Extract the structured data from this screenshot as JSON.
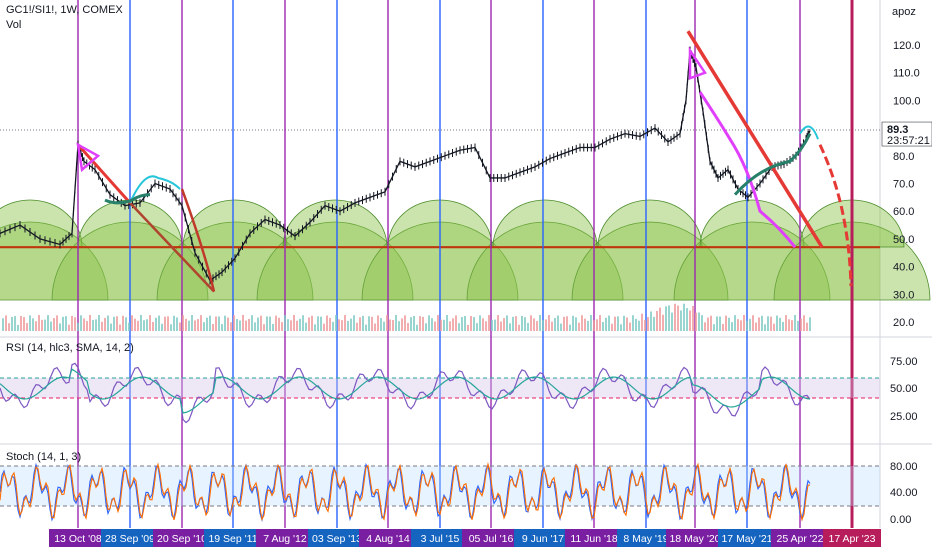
{
  "header": {
    "symbol": "GC1!/SI1!, 1W, COMEX",
    "volume_label": "Vol"
  },
  "scale_label": "apoz",
  "price_badge": {
    "value": "89.3",
    "countdown": "23:57:21"
  },
  "rsi_label": "RSI (14, hlc3, SMA, 14, 2)",
  "stoch_label": "Stoch (14, 1, 3)",
  "colors": {
    "purple_line": "#9c27b0",
    "blue_line": "#2962ff",
    "future_line": "#b71c5b",
    "trend_red": "#e53935",
    "trend_dark": "#b0452f",
    "magenta": "#e040fb",
    "cyan": "#26c6da",
    "teal": "#26806a",
    "green_arc": "#8bc34a",
    "support": "#bf360c",
    "rsi_line": "#7e57c2",
    "rsi_ma": "#26a69a",
    "stoch_k": "#2962ff",
    "stoch_d": "#ff6d00",
    "date_tag_purple": "#7b1fa2",
    "date_tag_blue": "#1565c0",
    "date_tag_future": "#b71c5b"
  },
  "chart_data": {
    "type": "line",
    "title": "GC1!/SI1!, 1W, COMEX",
    "ylim": [
      25,
      130
    ],
    "ticks_price": [
      "120.0",
      "110.0",
      "100.0",
      "90.0",
      "80.0",
      "70.0",
      "60.0",
      "50.0",
      "40.0",
      "30.0",
      "20.0"
    ],
    "ticks_rsi": [
      "75.00",
      "50.00",
      "25.00"
    ],
    "ticks_stoch": [
      "80.00",
      "40.00",
      "0.00"
    ],
    "support_level": 47,
    "date_tags": [
      {
        "label": "13 Oct '08",
        "kind": "purple"
      },
      {
        "label": "28 Sep '09",
        "kind": "blue"
      },
      {
        "label": "20 Sep '10",
        "kind": "purple"
      },
      {
        "label": "19 Sep '11",
        "kind": "blue"
      },
      {
        "label": "7 Aug '12",
        "kind": "purple"
      },
      {
        "label": "03 Sep '13",
        "kind": "blue"
      },
      {
        "label": "4 Aug '14",
        "kind": "purple"
      },
      {
        "label": "3 Jul '15",
        "kind": "blue"
      },
      {
        "label": "05 Jul '16",
        "kind": "purple"
      },
      {
        "label": "9 Jun '17",
        "kind": "blue"
      },
      {
        "label": "11 Jun '18",
        "kind": "purple"
      },
      {
        "label": "8 May '19",
        "kind": "blue"
      },
      {
        "label": "18 May '20",
        "kind": "purple"
      },
      {
        "label": "17 May '21",
        "kind": "blue"
      },
      {
        "label": "25 Apr '22",
        "kind": "purple"
      },
      {
        "label": "17 Apr '23",
        "kind": "future"
      }
    ],
    "series": [
      {
        "values": [
          {
            "x": 0,
            "y": 52
          },
          {
            "x": 20,
            "y": 55
          },
          {
            "x": 40,
            "y": 50
          },
          {
            "x": 60,
            "y": 48
          },
          {
            "x": 72,
            "y": 52
          },
          {
            "x": 78,
            "y": 84
          },
          {
            "x": 84,
            "y": 78
          },
          {
            "x": 95,
            "y": 75
          },
          {
            "x": 110,
            "y": 66
          },
          {
            "x": 125,
            "y": 62
          },
          {
            "x": 140,
            "y": 63
          },
          {
            "x": 155,
            "y": 70
          },
          {
            "x": 170,
            "y": 68
          },
          {
            "x": 182,
            "y": 62
          },
          {
            "x": 195,
            "y": 45
          },
          {
            "x": 210,
            "y": 35
          },
          {
            "x": 222,
            "y": 38
          },
          {
            "x": 235,
            "y": 43
          },
          {
            "x": 250,
            "y": 52
          },
          {
            "x": 265,
            "y": 57
          },
          {
            "x": 280,
            "y": 55
          },
          {
            "x": 295,
            "y": 51
          },
          {
            "x": 310,
            "y": 56
          },
          {
            "x": 325,
            "y": 62
          },
          {
            "x": 340,
            "y": 60
          },
          {
            "x": 355,
            "y": 63
          },
          {
            "x": 370,
            "y": 65
          },
          {
            "x": 385,
            "y": 67
          },
          {
            "x": 400,
            "y": 78
          },
          {
            "x": 415,
            "y": 76
          },
          {
            "x": 430,
            "y": 78
          },
          {
            "x": 445,
            "y": 80
          },
          {
            "x": 460,
            "y": 82
          },
          {
            "x": 475,
            "y": 83
          },
          {
            "x": 490,
            "y": 72
          },
          {
            "x": 505,
            "y": 72
          },
          {
            "x": 520,
            "y": 74
          },
          {
            "x": 535,
            "y": 76
          },
          {
            "x": 550,
            "y": 79
          },
          {
            "x": 565,
            "y": 81
          },
          {
            "x": 580,
            "y": 83
          },
          {
            "x": 595,
            "y": 83
          },
          {
            "x": 610,
            "y": 86
          },
          {
            "x": 625,
            "y": 88
          },
          {
            "x": 640,
            "y": 87
          },
          {
            "x": 655,
            "y": 90
          },
          {
            "x": 668,
            "y": 85
          },
          {
            "x": 680,
            "y": 88
          },
          {
            "x": 686,
            "y": 100
          },
          {
            "x": 690,
            "y": 118
          },
          {
            "x": 696,
            "y": 112
          },
          {
            "x": 703,
            "y": 96
          },
          {
            "x": 710,
            "y": 78
          },
          {
            "x": 718,
            "y": 72
          },
          {
            "x": 728,
            "y": 75
          },
          {
            "x": 738,
            "y": 68
          },
          {
            "x": 748,
            "y": 65
          },
          {
            "x": 760,
            "y": 70
          },
          {
            "x": 772,
            "y": 76
          },
          {
            "x": 784,
            "y": 77
          },
          {
            "x": 796,
            "y": 80
          },
          {
            "x": 806,
            "y": 86
          },
          {
            "x": 810,
            "y": 89
          }
        ]
      }
    ]
  }
}
